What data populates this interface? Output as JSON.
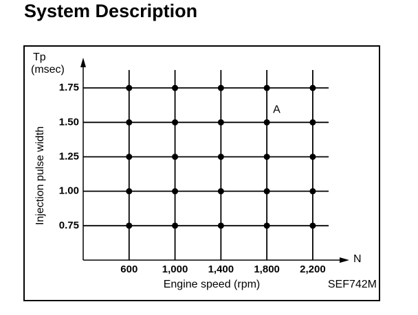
{
  "heading": "System Description",
  "chart_data": {
    "type": "scatter",
    "y_symbol": "Tp",
    "y_unit": "(msec)",
    "y_label": "Injection pulse width",
    "x_symbol": "N",
    "x_label": "Engine speed (rpm)",
    "figure_code": "SEF742M",
    "annotations": [
      {
        "text": "A",
        "x": 1800,
        "y": 1.5
      }
    ],
    "xlim": [
      200,
      2500
    ],
    "ylim": [
      0.5,
      1.95
    ],
    "xticks": [
      600,
      {
        "value": 1000,
        "label": "1,000"
      },
      {
        "value": 1400,
        "label": "1,400"
      },
      {
        "value": 1800,
        "label": "1,800"
      },
      {
        "value": 2200,
        "label": "2,200"
      }
    ],
    "yticks": [
      0.75,
      {
        "value": 1,
        "label": "1.00"
      },
      1.25,
      {
        "value": 1.5,
        "label": "1.50"
      },
      1.75
    ],
    "grid": true,
    "color": "#000000",
    "series": [
      {
        "x": [
          600,
          1000,
          1400,
          1800,
          2200,
          600,
          1000,
          1400,
          1800,
          2200,
          600,
          1000,
          1400,
          1800,
          2200,
          600,
          1000,
          1400,
          1800,
          2200,
          600,
          1000,
          1400,
          1800,
          2200
        ],
        "y": [
          0.75,
          0.75,
          0.75,
          0.75,
          0.75,
          1,
          1,
          1,
          1,
          1,
          1.25,
          1.25,
          1.25,
          1.25,
          1.25,
          1.5,
          1.5,
          1.5,
          1.5,
          1.5,
          1.75,
          1.75,
          1.75,
          1.75,
          1.75
        ]
      }
    ]
  }
}
